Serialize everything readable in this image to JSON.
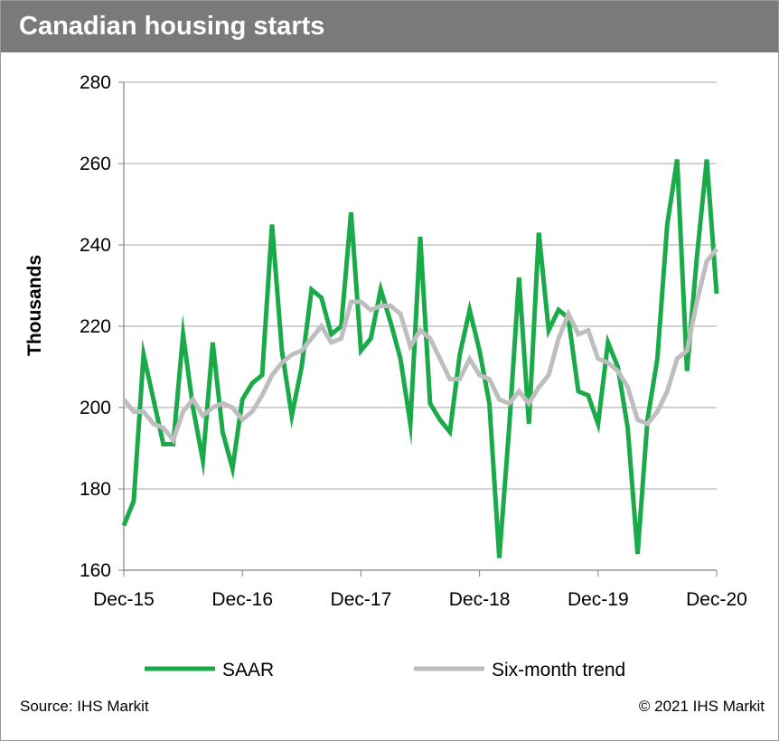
{
  "header": {
    "title": "Canadian housing starts"
  },
  "footer": {
    "source": "Source: IHS Markit",
    "copyright": "© 2021 IHS Markit"
  },
  "colors": {
    "saar": "#1aaa4a",
    "trend": "#bebebe",
    "title_bg": "#7a7a7a",
    "grid": "#a6a6a6"
  },
  "chart_data": {
    "type": "line",
    "title": "Canadian housing starts",
    "xlabel": "",
    "ylabel": "Thousands",
    "ylim": [
      160,
      280
    ],
    "yticks": [
      160,
      180,
      200,
      220,
      240,
      260,
      280
    ],
    "xlim": [
      0,
      60
    ],
    "xticks": [
      {
        "x": 0,
        "label": "Dec-15"
      },
      {
        "x": 12,
        "label": "Dec-16"
      },
      {
        "x": 24,
        "label": "Dec-17"
      },
      {
        "x": 36,
        "label": "Dec-18"
      },
      {
        "x": 48,
        "label": "Dec-19"
      },
      {
        "x": 60,
        "label": "Dec-20"
      }
    ],
    "grid": true,
    "legend_position": "bottom",
    "series": [
      {
        "name": "SAAR",
        "color": "#1aaa4a",
        "values": [
          171,
          177,
          213,
          202,
          191,
          191,
          218,
          200,
          187,
          216,
          194,
          185,
          202,
          206,
          208,
          245,
          214,
          198,
          210,
          229,
          227,
          218,
          220,
          248,
          214,
          217,
          229,
          221,
          212,
          196,
          242,
          201,
          197,
          194,
          213,
          224,
          214,
          201,
          163,
          195,
          232,
          196,
          243,
          219,
          224,
          222,
          204,
          203,
          196,
          216,
          210,
          195,
          164,
          197,
          212,
          245,
          261,
          209,
          237,
          261,
          228
        ]
      },
      {
        "name": "Six-month trend",
        "color": "#bebebe",
        "values": [
          202,
          199,
          199,
          196,
          195,
          192,
          199,
          202,
          198,
          200,
          201,
          200,
          197,
          199,
          203,
          208,
          211,
          213,
          214,
          217,
          220,
          216,
          217,
          226,
          226,
          224,
          225,
          225,
          223,
          215,
          219,
          217,
          212,
          207,
          207,
          212,
          208,
          207,
          202,
          201,
          204,
          201,
          205,
          208,
          217,
          223,
          218,
          219,
          212,
          211,
          209,
          205,
          197,
          196,
          199,
          204,
          212,
          214,
          226,
          236,
          239
        ]
      }
    ]
  }
}
